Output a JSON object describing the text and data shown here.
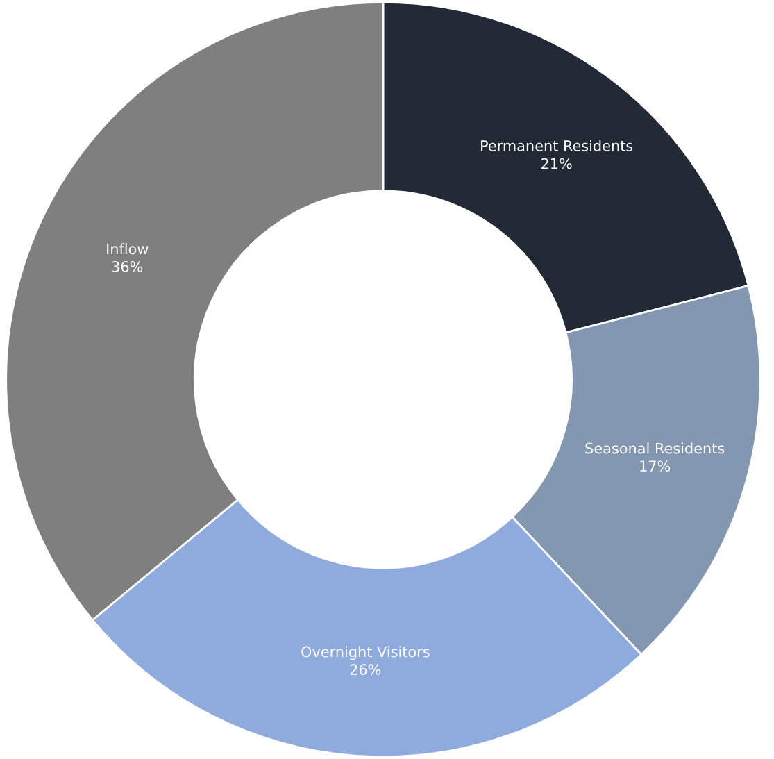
{
  "chart_data": {
    "type": "donut",
    "categories": [
      "Permanent Residents",
      "Seasonal Residents",
      "Overnight Visitors",
      "Inflow"
    ],
    "values": [
      21,
      17,
      26,
      36
    ],
    "value_labels": [
      "21%",
      "17%",
      "26%",
      "36%"
    ],
    "colors": [
      "#222a36",
      "#8497b0",
      "#8faadc",
      "#7f7f7f"
    ]
  }
}
